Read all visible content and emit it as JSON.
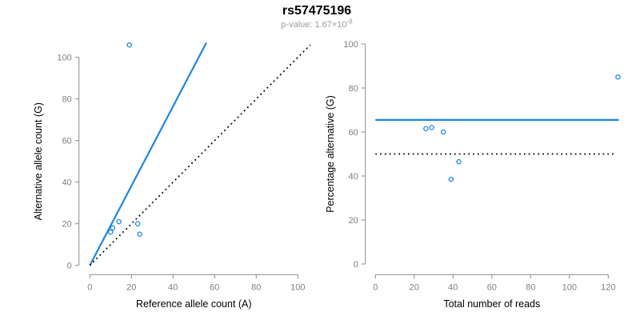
{
  "header": {
    "title": "rs57475196",
    "p_value_prefix": "p-value: 1.67×10",
    "p_value_exponent": "-8"
  },
  "colors": {
    "accent": "#1E87E0",
    "reference_line": "#000000",
    "axis": "#8C8C8C",
    "tick_label": "#7F7F7F",
    "subtitle": "#9E9E9E",
    "label": "#000000"
  },
  "chart_data": [
    {
      "type": "scatter",
      "xlabel": "Reference allele count (A)",
      "ylabel": "Alternative allele count (G)",
      "xlim": [
        0,
        100
      ],
      "ylim": [
        0,
        100
      ],
      "xticks": [
        0,
        20,
        40,
        60,
        80,
        100
      ],
      "yticks": [
        0,
        20,
        40,
        60,
        80,
        100
      ],
      "grid": false,
      "legend": false,
      "points": [
        [
          14,
          21
        ],
        [
          11,
          18
        ],
        [
          10,
          16
        ],
        [
          23,
          20
        ],
        [
          24,
          15
        ],
        [
          19,
          106
        ]
      ],
      "lines": [
        {
          "name": "fit-line",
          "color": "accent",
          "dash": "solid",
          "from": [
            0,
            0
          ],
          "to": [
            56,
            107
          ]
        },
        {
          "name": "identity-line",
          "color": "reference_line",
          "dash": "dotted",
          "from": [
            0,
            0
          ],
          "to": [
            106,
            106
          ]
        }
      ]
    },
    {
      "type": "scatter",
      "xlabel": "Total number of reads",
      "ylabel": "Percentage alternative (G)",
      "xlim": [
        0,
        125
      ],
      "ylim": [
        0,
        100
      ],
      "xticks": [
        0,
        20,
        40,
        60,
        80,
        100,
        120
      ],
      "yticks": [
        0,
        20,
        40,
        60,
        80,
        100
      ],
      "grid": false,
      "legend": false,
      "points": [
        [
          35,
          60
        ],
        [
          29,
          62
        ],
        [
          26,
          61.5
        ],
        [
          43,
          46.5
        ],
        [
          39,
          38.5
        ],
        [
          125,
          85
        ]
      ],
      "lines": [
        {
          "name": "fit-line",
          "color": "accent",
          "dash": "solid",
          "from": [
            0,
            65.5
          ],
          "to": [
            125.5,
            65.5
          ]
        },
        {
          "name": "fifty-percent-line",
          "color": "reference_line",
          "dash": "dotted",
          "from": [
            0,
            50
          ],
          "to": [
            123,
            50
          ]
        }
      ]
    }
  ]
}
